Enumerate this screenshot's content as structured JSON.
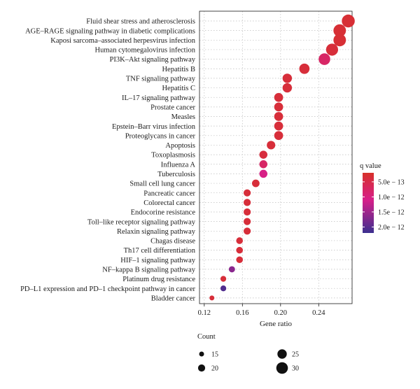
{
  "chart_data": {
    "type": "scatter",
    "xlabel": "Gene ratio",
    "xlim": [
      0.115,
      0.275
    ],
    "xticks": [
      0.12,
      0.16,
      0.2,
      0.24
    ],
    "xtick_labels": [
      "0.12",
      "0.16",
      "0.20",
      "0.24"
    ],
    "grid": true,
    "points": [
      {
        "category": "Fluid shear stress and atherosclerosis",
        "gene_ratio": 0.271,
        "count": 33,
        "q_value": 3e-13
      },
      {
        "category": "AGE–RAGE signaling pathway in diabetic complications",
        "gene_ratio": 0.262,
        "count": 32,
        "q_value": 3e-13
      },
      {
        "category": "Kaposi sarcoma–associated herpesvirus infection",
        "gene_ratio": 0.262,
        "count": 32,
        "q_value": 3e-13
      },
      {
        "category": "Human cytomegalovirus infection",
        "gene_ratio": 0.254,
        "count": 31,
        "q_value": 3.5e-13
      },
      {
        "category": "PI3K–Akt signaling pathway",
        "gene_ratio": 0.246,
        "count": 30,
        "q_value": 7.5e-13
      },
      {
        "category": "Hepatitis B",
        "gene_ratio": 0.225,
        "count": 27,
        "q_value": 3.5e-13
      },
      {
        "category": "TNF signaling pathway",
        "gene_ratio": 0.207,
        "count": 25,
        "q_value": 3.5e-13
      },
      {
        "category": "Hepatitis C",
        "gene_ratio": 0.207,
        "count": 25,
        "q_value": 3.5e-13
      },
      {
        "category": "IL–17 signaling pathway",
        "gene_ratio": 0.198,
        "count": 24,
        "q_value": 3.5e-13
      },
      {
        "category": "Prostate cancer",
        "gene_ratio": 0.198,
        "count": 24,
        "q_value": 3.5e-13
      },
      {
        "category": "Measles",
        "gene_ratio": 0.198,
        "count": 24,
        "q_value": 3.5e-13
      },
      {
        "category": "Epstein–Barr virus infection",
        "gene_ratio": 0.198,
        "count": 24,
        "q_value": 3.5e-13
      },
      {
        "category": "Proteoglycans in cancer",
        "gene_ratio": 0.198,
        "count": 24,
        "q_value": 3.5e-13
      },
      {
        "category": "Apoptosis",
        "gene_ratio": 0.19,
        "count": 23,
        "q_value": 3.5e-13
      },
      {
        "category": "Toxoplasmosis",
        "gene_ratio": 0.182,
        "count": 22,
        "q_value": 4e-13
      },
      {
        "category": "Influenza A",
        "gene_ratio": 0.182,
        "count": 22,
        "q_value": 7.5e-13
      },
      {
        "category": "Tuberculosis",
        "gene_ratio": 0.182,
        "count": 22,
        "q_value": 1.05e-12
      },
      {
        "category": "Small cell lung cancer",
        "gene_ratio": 0.174,
        "count": 21,
        "q_value": 3.5e-13
      },
      {
        "category": "Pancreatic cancer",
        "gene_ratio": 0.165,
        "count": 20,
        "q_value": 3.5e-13
      },
      {
        "category": "Colorectal cancer",
        "gene_ratio": 0.165,
        "count": 20,
        "q_value": 3.5e-13
      },
      {
        "category": "Endocorine resistance",
        "gene_ratio": 0.165,
        "count": 20,
        "q_value": 3.5e-13
      },
      {
        "category": "Toll–like receptor signaling pathway",
        "gene_ratio": 0.165,
        "count": 20,
        "q_value": 3.5e-13
      },
      {
        "category": "Relaxin signaling pathway",
        "gene_ratio": 0.165,
        "count": 20,
        "q_value": 3.5e-13
      },
      {
        "category": "Chagas disease",
        "gene_ratio": 0.157,
        "count": 19,
        "q_value": 3.5e-13
      },
      {
        "category": "Th17 cell differentiation",
        "gene_ratio": 0.157,
        "count": 19,
        "q_value": 3.5e-13
      },
      {
        "category": "HIF–1 signaling pathway",
        "gene_ratio": 0.157,
        "count": 19,
        "q_value": 3.5e-13
      },
      {
        "category": "NF–kappa B signaling pathway",
        "gene_ratio": 0.149,
        "count": 18,
        "q_value": 1.65e-12
      },
      {
        "category": "Platinum drug resistance",
        "gene_ratio": 0.14,
        "count": 17,
        "q_value": 3.5e-13
      },
      {
        "category": "PD–L1 expression and PD–1 checkpoint pathway in cancer",
        "gene_ratio": 0.14,
        "count": 17,
        "q_value": 2.05e-12
      },
      {
        "category": "Bladder cancer",
        "gene_ratio": 0.128,
        "count": 15,
        "q_value": 3.5e-13
      }
    ],
    "color_legend": {
      "title": "q value",
      "domain": [
        2.2e-12,
        2e-13
      ],
      "colors": [
        "#3b2f8f",
        "#d71f8a",
        "#d7312a"
      ],
      "ticks": [
        5e-13,
        1e-12,
        1.5e-12,
        2e-12
      ],
      "tick_labels": [
        "5.0e − 13",
        "1.0e − 12",
        "1.5e − 12",
        "2.0e − 12"
      ]
    },
    "size_legend": {
      "title": "Count",
      "entries": [
        15,
        20,
        25,
        30
      ],
      "labels": [
        "15",
        "20",
        "25",
        "30"
      ]
    }
  }
}
